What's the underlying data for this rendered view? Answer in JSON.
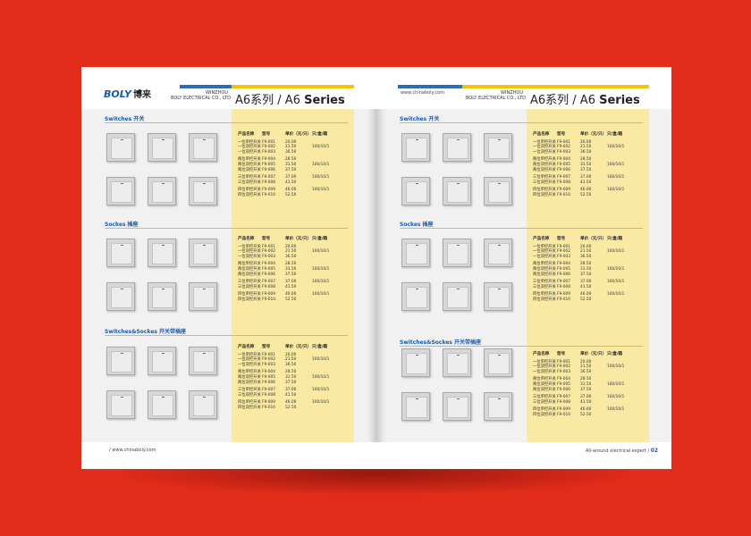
{
  "brand": {
    "logo_text": "BOLY",
    "logo_cn": "博来",
    "city": "WINZHOU",
    "company": "BOLY ELECTRICAL CO., LTD"
  },
  "website": "www.chinaboly.com",
  "title": {
    "cn": "A6系列 / A6",
    "en": "Series"
  },
  "footer": {
    "left_url": "/ www.chinaboly.com",
    "right_slogan": "All-around electrical expert /",
    "page_number": "02"
  },
  "colors": {
    "background": "#e22c1a",
    "yellow": "#f5c400",
    "blue": "#2a6ebb",
    "panel": "#f9e9a3"
  },
  "table_header": [
    "产品名称",
    "型号",
    "单价（元/只）",
    "只/盒/箱"
  ],
  "products": [
    {
      "name": "一位单控开关",
      "model": "F9-001",
      "price": "20.00"
    },
    {
      "name": "一位双控开关",
      "model": "F9-002",
      "price": "21.50"
    },
    {
      "name": "一位双控开关",
      "model": "F9-003",
      "price": "36.50"
    },
    {
      "name": "两位单控开关",
      "model": "F9-004",
      "price": "28.50"
    },
    {
      "name": "两位双控开关",
      "model": "F9-005",
      "price": "31.50"
    },
    {
      "name": "两位双控开关",
      "model": "F9-006",
      "price": "37.50"
    },
    {
      "name": "三位单控开关",
      "model": "F9-007",
      "price": "37.00"
    },
    {
      "name": "三位双控开关",
      "model": "F9-008",
      "price": "41.50"
    },
    {
      "name": "四位单控开关",
      "model": "F9-009",
      "price": "46.00"
    },
    {
      "name": "四位双控开关",
      "model": "F9-010",
      "price": "52.50"
    }
  ],
  "packing": "100/10/1",
  "sections": [
    {
      "title": "Switches 开关"
    },
    {
      "title": "Sockes 插座"
    },
    {
      "title": "Switches&Sockes 开关带插座"
    }
  ]
}
